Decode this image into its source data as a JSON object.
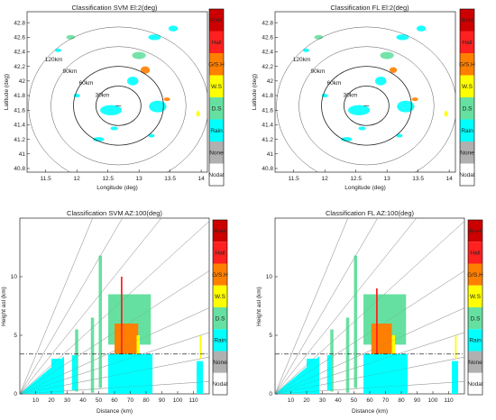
{
  "chart_data": [
    {
      "type": "heatmap",
      "title": "Classification SVM El:2(deg)",
      "xlabel": "Longitude (deg)",
      "ylabel": "Latitude (deg)",
      "xlim": [
        11.2,
        14.1
      ],
      "ylim": [
        40.75,
        42.95
      ],
      "xticks": [
        "11.5",
        "12",
        "12.5",
        "13",
        "13.5",
        "14"
      ],
      "yticks": [
        "40.8",
        "41",
        "41.2",
        "41.4",
        "41.6",
        "41.8",
        "42",
        "42.2",
        "42.4",
        "42.6",
        "42.8"
      ],
      "center": [
        12.67,
        41.66
      ],
      "ranges_km": [
        30,
        60,
        90,
        120
      ],
      "range_labels": [
        "30km",
        "60km",
        "90km",
        "120km"
      ],
      "echoes": [
        {
          "lon": 13.0,
          "lat": 42.35,
          "w": 0.22,
          "h": 0.1,
          "cls": "D.S"
        },
        {
          "lon": 13.25,
          "lat": 42.6,
          "w": 0.2,
          "h": 0.08,
          "cls": "Rain"
        },
        {
          "lon": 13.55,
          "lat": 42.72,
          "w": 0.15,
          "h": 0.08,
          "cls": "Rain"
        },
        {
          "lon": 12.9,
          "lat": 42.0,
          "w": 0.18,
          "h": 0.12,
          "cls": "Rain"
        },
        {
          "lon": 13.1,
          "lat": 42.15,
          "w": 0.15,
          "h": 0.1,
          "cls": "G/S.H"
        },
        {
          "lon": 12.55,
          "lat": 41.6,
          "w": 0.35,
          "h": 0.14,
          "cls": "Rain"
        },
        {
          "lon": 13.45,
          "lat": 41.75,
          "w": 0.1,
          "h": 0.05,
          "cls": "G/S.H"
        },
        {
          "lon": 13.3,
          "lat": 41.65,
          "w": 0.28,
          "h": 0.16,
          "cls": "Rain"
        },
        {
          "lon": 12.35,
          "lat": 41.2,
          "w": 0.18,
          "h": 0.06,
          "cls": "Rain"
        },
        {
          "lon": 12.6,
          "lat": 41.35,
          "w": 0.12,
          "h": 0.05,
          "cls": "Rain"
        },
        {
          "lon": 11.9,
          "lat": 42.6,
          "w": 0.14,
          "h": 0.06,
          "cls": "D.S"
        },
        {
          "lon": 11.7,
          "lat": 42.42,
          "w": 0.1,
          "h": 0.05,
          "cls": "Rain"
        },
        {
          "lon": 13.95,
          "lat": 41.55,
          "w": 0.06,
          "h": 0.08,
          "cls": "W.S"
        },
        {
          "lon": 12.0,
          "lat": 41.8,
          "w": 0.1,
          "h": 0.05,
          "cls": "Rain"
        },
        {
          "lon": 13.2,
          "lat": 41.25,
          "w": 0.1,
          "h": 0.05,
          "cls": "Rain"
        }
      ]
    },
    {
      "type": "heatmap",
      "title": "Classification FL El:2(deg)",
      "xlabel": "Longitude (deg)",
      "ylabel": "Latitude (deg)",
      "xlim": [
        11.2,
        14.1
      ],
      "ylim": [
        40.75,
        42.95
      ],
      "xticks": [
        "11.5",
        "12",
        "12.5",
        "13",
        "13.5",
        "14"
      ],
      "yticks": [
        "40.8",
        "41",
        "41.2",
        "41.4",
        "41.6",
        "41.8",
        "42",
        "42.2",
        "42.4",
        "42.6",
        "42.8"
      ],
      "center": [
        12.67,
        41.66
      ],
      "ranges_km": [
        30,
        60,
        90,
        120
      ],
      "range_labels": [
        "30km",
        "60km",
        "90km",
        "120km"
      ],
      "echoes": [
        {
          "lon": 13.0,
          "lat": 42.35,
          "w": 0.22,
          "h": 0.1,
          "cls": "D.S"
        },
        {
          "lon": 13.25,
          "lat": 42.6,
          "w": 0.2,
          "h": 0.08,
          "cls": "Rain"
        },
        {
          "lon": 13.55,
          "lat": 42.72,
          "w": 0.15,
          "h": 0.08,
          "cls": "Rain"
        },
        {
          "lon": 12.9,
          "lat": 42.0,
          "w": 0.18,
          "h": 0.12,
          "cls": "Rain"
        },
        {
          "lon": 13.1,
          "lat": 42.15,
          "w": 0.12,
          "h": 0.08,
          "cls": "G/S.H"
        },
        {
          "lon": 12.55,
          "lat": 41.6,
          "w": 0.35,
          "h": 0.14,
          "cls": "Rain"
        },
        {
          "lon": 13.45,
          "lat": 41.75,
          "w": 0.1,
          "h": 0.05,
          "cls": "G/S.H"
        },
        {
          "lon": 13.3,
          "lat": 41.65,
          "w": 0.28,
          "h": 0.16,
          "cls": "Rain"
        },
        {
          "lon": 12.35,
          "lat": 41.2,
          "w": 0.18,
          "h": 0.06,
          "cls": "Rain"
        },
        {
          "lon": 12.6,
          "lat": 41.35,
          "w": 0.12,
          "h": 0.05,
          "cls": "Rain"
        },
        {
          "lon": 11.9,
          "lat": 42.6,
          "w": 0.14,
          "h": 0.06,
          "cls": "D.S"
        },
        {
          "lon": 11.7,
          "lat": 42.42,
          "w": 0.1,
          "h": 0.05,
          "cls": "Rain"
        },
        {
          "lon": 13.95,
          "lat": 41.55,
          "w": 0.06,
          "h": 0.08,
          "cls": "W.S"
        },
        {
          "lon": 12.0,
          "lat": 41.8,
          "w": 0.1,
          "h": 0.05,
          "cls": "Rain"
        },
        {
          "lon": 13.2,
          "lat": 41.25,
          "w": 0.1,
          "h": 0.05,
          "cls": "Rain"
        }
      ]
    },
    {
      "type": "heatmap",
      "title": "Classification SVM AZ:100(deg)",
      "xlabel": "Distance (km)",
      "ylabel": "Height asl (km)",
      "xlim": [
        0,
        120
      ],
      "ylim": [
        0,
        15
      ],
      "xticks": [
        "10",
        "20",
        "30",
        "40",
        "50",
        "60",
        "70",
        "80",
        "90",
        "100",
        "110"
      ],
      "yticks": [
        "0",
        "5",
        "10"
      ],
      "reference_height_km": 3.4,
      "beam_elevations_deg": [
        0.5,
        1.5,
        2.5,
        3.5,
        5,
        7,
        9.5,
        13,
        18
      ],
      "echoes": [
        {
          "x0": 35,
          "x1": 37,
          "y0": 0.2,
          "y1": 5.5,
          "cls": "D.S"
        },
        {
          "x0": 33,
          "x1": 36,
          "y0": 0.3,
          "y1": 3.3,
          "cls": "Rain"
        },
        {
          "x0": 45,
          "x1": 47,
          "y0": 0.1,
          "y1": 6.5,
          "cls": "D.S"
        },
        {
          "x0": 50,
          "x1": 52,
          "y0": 0.5,
          "y1": 11.8,
          "cls": "D.S"
        },
        {
          "x0": 56,
          "x1": 83,
          "y0": 4.2,
          "y1": 8.5,
          "cls": "D.S"
        },
        {
          "x0": 60,
          "x1": 75,
          "y0": 2.0,
          "y1": 6.0,
          "cls": "G/S.H"
        },
        {
          "x0": 74,
          "x1": 76,
          "y0": 2.0,
          "y1": 5.0,
          "cls": "W.S"
        },
        {
          "x0": 64,
          "x1": 65,
          "y0": 0.0,
          "y1": 10.0,
          "cls": "Hail"
        },
        {
          "x0": 64,
          "x1": 65.5,
          "y0": 0.0,
          "y1": 1.2,
          "cls": "R+H"
        },
        {
          "x0": 56,
          "x1": 84,
          "y0": 0.0,
          "y1": 3.4,
          "cls": "Rain"
        },
        {
          "x0": 20,
          "x1": 28,
          "y0": 0.0,
          "y1": 3.0,
          "cls": "Rain"
        },
        {
          "x0": 112,
          "x1": 116,
          "y0": 0.0,
          "y1": 2.8,
          "cls": "Rain"
        },
        {
          "x0": 114,
          "x1": 115,
          "y0": 3.0,
          "y1": 5.0,
          "cls": "W.S"
        }
      ]
    },
    {
      "type": "heatmap",
      "title": "Classification FL AZ:100(deg)",
      "xlabel": "Distance (km)",
      "ylabel": "Height asl (km)",
      "xlim": [
        0,
        120
      ],
      "ylim": [
        0,
        15
      ],
      "xticks": [
        "10",
        "20",
        "30",
        "40",
        "50",
        "60",
        "70",
        "80",
        "90",
        "100",
        "110"
      ],
      "yticks": [
        "0",
        "5",
        "10"
      ],
      "reference_height_km": 3.4,
      "beam_elevations_deg": [
        0.5,
        1.5,
        2.5,
        3.5,
        5,
        7,
        9.5,
        13,
        18
      ],
      "echoes": [
        {
          "x0": 35,
          "x1": 37,
          "y0": 0.2,
          "y1": 5.5,
          "cls": "D.S"
        },
        {
          "x0": 33,
          "x1": 36,
          "y0": 0.3,
          "y1": 3.3,
          "cls": "Rain"
        },
        {
          "x0": 45,
          "x1": 47,
          "y0": 0.1,
          "y1": 6.5,
          "cls": "D.S"
        },
        {
          "x0": 50,
          "x1": 52,
          "y0": 0.5,
          "y1": 11.8,
          "cls": "D.S"
        },
        {
          "x0": 56,
          "x1": 83,
          "y0": 4.2,
          "y1": 8.5,
          "cls": "D.S"
        },
        {
          "x0": 61,
          "x1": 74,
          "y0": 2.0,
          "y1": 6.0,
          "cls": "G/S.H"
        },
        {
          "x0": 74,
          "x1": 76,
          "y0": 2.0,
          "y1": 5.0,
          "cls": "W.S"
        },
        {
          "x0": 64,
          "x1": 65,
          "y0": 0.0,
          "y1": 9.0,
          "cls": "Hail"
        },
        {
          "x0": 56,
          "x1": 84,
          "y0": 0.0,
          "y1": 3.4,
          "cls": "Rain"
        },
        {
          "x0": 20,
          "x1": 28,
          "y0": 0.0,
          "y1": 3.0,
          "cls": "Rain"
        },
        {
          "x0": 112,
          "x1": 116,
          "y0": 0.0,
          "y1": 2.8,
          "cls": "Rain"
        },
        {
          "x0": 114,
          "x1": 115,
          "y0": 3.0,
          "y1": 5.0,
          "cls": "W.S"
        }
      ]
    }
  ],
  "colorbar": {
    "classes": [
      "R+H",
      "Hail",
      "G/S.H",
      "W.S",
      "D.S",
      "Rain",
      "None",
      "Nodat"
    ],
    "colors": [
      "#cc0000",
      "#ff2020",
      "#ff8000",
      "#ffff00",
      "#66e0a0",
      "#00ffff",
      "#b0b0b0",
      "#ffffff"
    ]
  }
}
